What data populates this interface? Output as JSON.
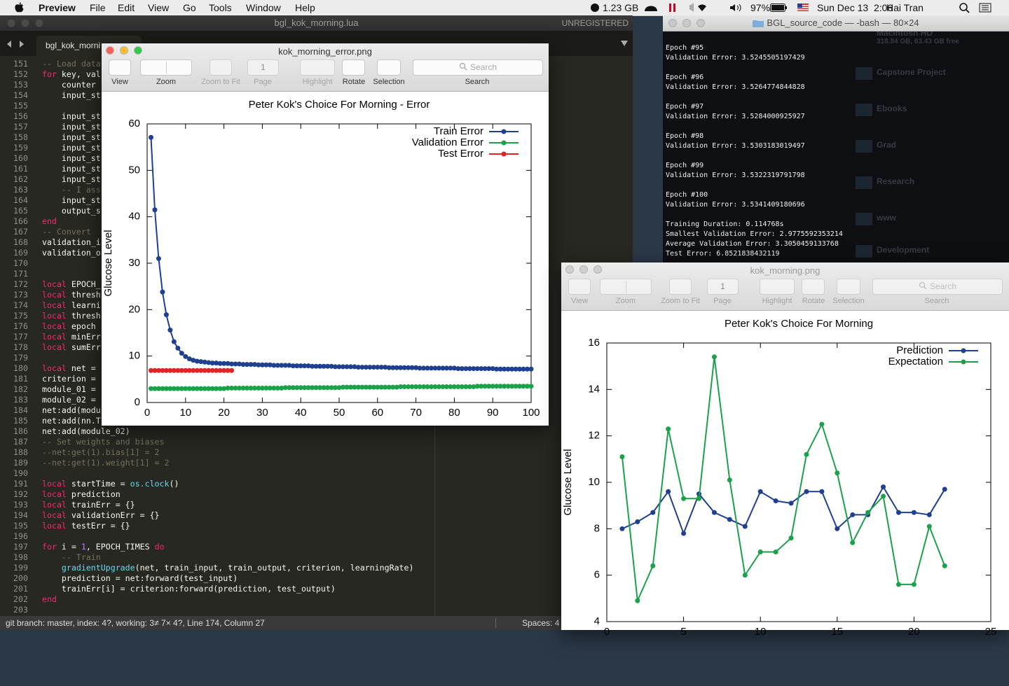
{
  "menubar": {
    "app": "Preview",
    "menus": [
      "File",
      "Edit",
      "View",
      "Go",
      "Tools",
      "Window",
      "Help"
    ],
    "memory": "1.23 GB",
    "battery": "97%",
    "clock": "Sun Dec 13  2:06",
    "user": "Hai Tran"
  },
  "editor": {
    "title": "bgl_kok_morning.lua",
    "license": "UNREGISTERED",
    "tab": "bgl_kok_morni",
    "lines": [
      [
        151,
        "-- Load data"
      ],
      [
        152,
        "for key, val"
      ],
      [
        153,
        "    counter"
      ],
      [
        154,
        "    input_st"
      ],
      [
        155,
        ""
      ],
      [
        156,
        "    input_st"
      ],
      [
        157,
        "    input_st"
      ],
      [
        158,
        "    input_st"
      ],
      [
        159,
        "    input_st"
      ],
      [
        160,
        "    input_st"
      ],
      [
        161,
        "    input_st"
      ],
      [
        162,
        "    input_st"
      ],
      [
        163,
        "    -- I ass"
      ],
      [
        164,
        "    input_st"
      ],
      [
        165,
        "    output_s"
      ],
      [
        166,
        "end"
      ],
      [
        167,
        "-- Convert"
      ],
      [
        168,
        "validation_i"
      ],
      [
        169,
        "validation_o"
      ],
      [
        170,
        ""
      ],
      [
        171,
        ""
      ],
      [
        172,
        "local EPOCH_"
      ],
      [
        173,
        "local thresh"
      ],
      [
        174,
        "local learni"
      ],
      [
        175,
        "local thresh"
      ],
      [
        176,
        "local epoch"
      ],
      [
        177,
        "local minErr"
      ],
      [
        178,
        "local sumErr"
      ],
      [
        179,
        ""
      ],
      [
        180,
        "local net ="
      ],
      [
        181,
        "criterion ="
      ],
      [
        182,
        "module_01 ="
      ],
      [
        183,
        "module_02 ="
      ],
      [
        184,
        "net:add(modu"
      ],
      [
        185,
        "net:add(nn.T"
      ],
      [
        186,
        "net:add(module_02)"
      ],
      [
        187,
        "-- Set weights and biases"
      ],
      [
        188,
        "--net:get(1).bias[1] = 2"
      ],
      [
        189,
        "--net:get(1).weight[1] = 2"
      ],
      [
        190,
        ""
      ],
      [
        191,
        "local startTime = os.clock()"
      ],
      [
        192,
        "local prediction"
      ],
      [
        193,
        "local trainErr = {}"
      ],
      [
        194,
        "local validationErr = {}"
      ],
      [
        195,
        "local testErr = {}"
      ],
      [
        196,
        ""
      ],
      [
        197,
        "for i = 1, EPOCH_TIMES do"
      ],
      [
        198,
        "    -- Train"
      ],
      [
        199,
        "    gradientUpgrade(net, train_input, train_output, criterion, learningRate)"
      ],
      [
        200,
        "    prediction = net:forward(test_input)"
      ],
      [
        201,
        "    trainErr[i] = criterion:forward(prediction, test_output)"
      ],
      [
        202,
        "end"
      ],
      [
        203,
        ""
      ]
    ],
    "status": "git branch: master, index: 4?, working: 3≠ 7× 4?, Line 174, Column 27",
    "indent": "Spaces: 4"
  },
  "terminal": {
    "title": "BGL_source_code — -bash — 80×24",
    "lines": [
      "Epoch #95",
      "Validation Error: 3.5245505197429",
      "",
      "Epoch #96",
      "Validation Error: 3.5264774844828",
      "",
      "Epoch #97",
      "Validation Error: 3.5284000925927",
      "",
      "Epoch #98",
      "Validation Error: 3.5303183019497",
      "",
      "Epoch #99",
      "Validation Error: 3.5322319791798",
      "",
      "Epoch #100",
      "Validation Error: 3.5341409180696",
      "",
      "Training Duration: 0.114768s",
      "Smallest Validation Error: 2.9775592353214",
      "Average Validation Error: 3.3050459133768",
      "Test Error: 6.8521838432119"
    ]
  },
  "desktop": {
    "disk": "Macintosh HD",
    "disk_info": "318.84 GB, 63.43 GB free",
    "folders": [
      "Capstone Project",
      "Ebooks",
      "Grad",
      "Research",
      "www",
      "Development"
    ]
  },
  "windows": [
    {
      "title": "kok_morning_error.png",
      "page": "1",
      "search": "Search",
      "toolbar": [
        "View",
        "Zoom",
        "Zoom to Fit",
        "Page",
        "Highlight",
        "Rotate",
        "Selection",
        "Search"
      ]
    },
    {
      "title": "kok_morning.png",
      "page": "1",
      "search": "Search",
      "toolbar": [
        "View",
        "Zoom",
        "Zoom to Fit",
        "Page",
        "Highlight",
        "Rotate",
        "Selection",
        "Search"
      ]
    }
  ],
  "chart_data": [
    {
      "type": "line",
      "title": "Peter Kok's Choice For Morning - Error",
      "ylabel": "Glucose Level",
      "legend": "top-right",
      "x": [
        1,
        2,
        3,
        4,
        5,
        6,
        7,
        8,
        9,
        10,
        11,
        12,
        13,
        14,
        15,
        16,
        17,
        18,
        19,
        20,
        21,
        22,
        23,
        24,
        25,
        26,
        27,
        28,
        29,
        30,
        31,
        32,
        33,
        34,
        35,
        36,
        37,
        38,
        39,
        40,
        41,
        42,
        43,
        44,
        45,
        46,
        47,
        48,
        49,
        50,
        51,
        52,
        53,
        54,
        55,
        56,
        57,
        58,
        59,
        60,
        61,
        62,
        63,
        64,
        65,
        66,
        67,
        68,
        69,
        70,
        71,
        72,
        73,
        74,
        75,
        76,
        77,
        78,
        79,
        80,
        81,
        82,
        83,
        84,
        85,
        86,
        87,
        88,
        89,
        90,
        91,
        92,
        93,
        94,
        95,
        96,
        97,
        98,
        99,
        100
      ],
      "xlim": [
        0,
        100
      ],
      "xticks": [
        0,
        10,
        20,
        30,
        40,
        50,
        60,
        70,
        80,
        90,
        100
      ],
      "ylim": [
        0,
        60
      ],
      "yticks": [
        0,
        10,
        20,
        30,
        40,
        50,
        60
      ],
      "series": [
        {
          "name": "Train Error",
          "color": "#1f3f8f",
          "values": [
            57.1,
            41.5,
            31.0,
            23.8,
            18.9,
            15.6,
            13.1,
            11.7,
            10.6,
            9.9,
            9.4,
            9.1,
            8.9,
            8.8,
            8.7,
            8.6,
            8.5,
            8.5,
            8.4,
            8.4,
            8.4,
            8.3,
            8.3,
            8.3,
            8.2,
            8.2,
            8.2,
            8.2,
            8.1,
            8.1,
            8.1,
            8.1,
            8.0,
            8.0,
            8.0,
            8.0,
            8.0,
            7.9,
            7.9,
            7.9,
            7.9,
            7.9,
            7.8,
            7.8,
            7.8,
            7.8,
            7.8,
            7.8,
            7.7,
            7.7,
            7.7,
            7.7,
            7.7,
            7.7,
            7.6,
            7.6,
            7.6,
            7.6,
            7.6,
            7.6,
            7.6,
            7.6,
            7.5,
            7.5,
            7.5,
            7.5,
            7.5,
            7.5,
            7.5,
            7.5,
            7.4,
            7.4,
            7.4,
            7.4,
            7.4,
            7.4,
            7.4,
            7.4,
            7.4,
            7.4,
            7.3,
            7.3,
            7.3,
            7.3,
            7.3,
            7.3,
            7.3,
            7.3,
            7.3,
            7.3,
            7.2,
            7.2,
            7.2,
            7.2,
            7.2,
            7.2,
            7.2,
            7.2,
            7.2,
            7.2
          ]
        },
        {
          "name": "Validation Error",
          "color": "#1aa14a",
          "values": [
            3.0,
            3.0,
            3.0,
            3.0,
            3.0,
            3.0,
            3.0,
            3.0,
            3.0,
            3.0,
            3.0,
            3.0,
            3.0,
            3.0,
            3.0,
            3.0,
            3.0,
            3.0,
            3.0,
            3.0,
            3.1,
            3.1,
            3.1,
            3.1,
            3.1,
            3.1,
            3.1,
            3.1,
            3.1,
            3.1,
            3.1,
            3.1,
            3.1,
            3.1,
            3.1,
            3.2,
            3.2,
            3.2,
            3.2,
            3.2,
            3.2,
            3.2,
            3.2,
            3.2,
            3.2,
            3.2,
            3.2,
            3.2,
            3.2,
            3.2,
            3.3,
            3.3,
            3.3,
            3.3,
            3.3,
            3.3,
            3.3,
            3.3,
            3.3,
            3.3,
            3.3,
            3.3,
            3.3,
            3.3,
            3.3,
            3.4,
            3.4,
            3.4,
            3.4,
            3.4,
            3.4,
            3.4,
            3.4,
            3.4,
            3.4,
            3.4,
            3.4,
            3.4,
            3.4,
            3.4,
            3.4,
            3.4,
            3.4,
            3.4,
            3.4,
            3.5,
            3.5,
            3.5,
            3.5,
            3.5,
            3.5,
            3.5,
            3.5,
            3.5,
            3.5,
            3.5,
            3.5,
            3.5,
            3.5,
            3.5
          ]
        },
        {
          "name": "Test Error",
          "color": "#e02424",
          "values": [
            6.9,
            6.9,
            6.9,
            6.9,
            6.9,
            6.9,
            6.9,
            6.9,
            6.9,
            6.9,
            6.9,
            6.9,
            6.9,
            6.9,
            6.9,
            6.9,
            6.9,
            6.9,
            6.9,
            6.9,
            6.9,
            6.9,
            null,
            null,
            null,
            null,
            null,
            null,
            null,
            null,
            null,
            null,
            null,
            null,
            null,
            null,
            null,
            null,
            null,
            null,
            null,
            null,
            null,
            null,
            null,
            null,
            null,
            null,
            null,
            null,
            null,
            null,
            null,
            null,
            null,
            null,
            null,
            null,
            null,
            null,
            null,
            null,
            null,
            null,
            null,
            null,
            null,
            null,
            null,
            null,
            null,
            null,
            null,
            null,
            null,
            null,
            null,
            null,
            null,
            null,
            null,
            null,
            null,
            null,
            null,
            null,
            null,
            null,
            null,
            null,
            null,
            null,
            null,
            null,
            null,
            null,
            null,
            null,
            null,
            null
          ]
        }
      ]
    },
    {
      "type": "line",
      "title": "Peter Kok's Choice For Morning",
      "ylabel": "Glucose Level",
      "legend": "top-right",
      "x": [
        1,
        2,
        3,
        4,
        5,
        6,
        7,
        8,
        9,
        10,
        11,
        12,
        13,
        14,
        15,
        16,
        17,
        18,
        19,
        20,
        21,
        22
      ],
      "xlim": [
        0,
        25
      ],
      "xticks": [
        0,
        5,
        10,
        15,
        20,
        25
      ],
      "ylim": [
        4,
        16
      ],
      "yticks": [
        4,
        6,
        8,
        10,
        12,
        14,
        16
      ],
      "series": [
        {
          "name": "Prediction",
          "color": "#1f3f8f",
          "values": [
            8.0,
            8.3,
            8.7,
            9.6,
            7.8,
            9.5,
            8.7,
            8.4,
            8.1,
            9.6,
            9.2,
            9.1,
            9.6,
            9.6,
            8.0,
            8.6,
            8.6,
            9.8,
            8.7,
            8.7,
            8.6,
            9.7
          ]
        },
        {
          "name": "Expectation",
          "color": "#1aa14a",
          "values": [
            11.1,
            4.9,
            6.4,
            12.3,
            9.3,
            9.3,
            15.4,
            10.1,
            6.0,
            7.0,
            7.0,
            7.6,
            11.2,
            12.5,
            10.4,
            7.4,
            8.7,
            9.4,
            5.6,
            5.6,
            8.1,
            6.4
          ]
        }
      ]
    }
  ]
}
